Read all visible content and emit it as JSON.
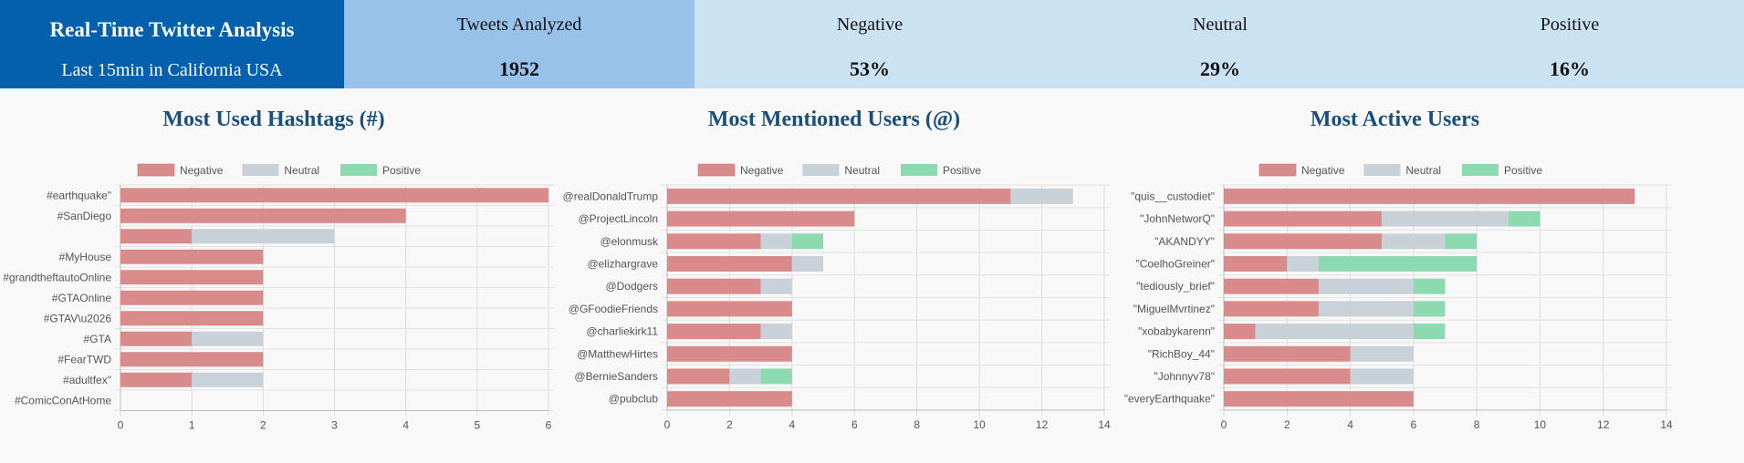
{
  "header": {
    "title": "Real-Time Twitter Analysis",
    "subtitle": "Last 15min in California USA",
    "stats": [
      {
        "label": "Tweets Analyzed",
        "value": "1952"
      },
      {
        "label": "Negative",
        "value": "53%"
      },
      {
        "label": "Neutral",
        "value": "29%"
      },
      {
        "label": "Positive",
        "value": "16%"
      }
    ]
  },
  "colors": {
    "negative": "#d98b8b",
    "neutral": "#c9d1d8",
    "positive": "#8dd9b0"
  },
  "chart_data": [
    {
      "type": "bar",
      "orientation": "horizontal",
      "stacked": true,
      "title": "Most Used Hashtags (#)",
      "categories": [
        "#earthquake\"",
        "#SanDiego",
        "",
        "#MyHouse",
        "#grandtheftautoOnline",
        "#GTAOnline",
        "#GTAV\\u2026",
        "#GTA",
        "#FearTWD",
        "#adultfex\"",
        "#ComicConAtHome"
      ],
      "series": [
        {
          "name": "Negative",
          "values": [
            6,
            4,
            1,
            2,
            2,
            2,
            2,
            1,
            2,
            1,
            0
          ]
        },
        {
          "name": "Neutral",
          "values": [
            0,
            0,
            2,
            0,
            0,
            0,
            0,
            1,
            0,
            1,
            0
          ]
        },
        {
          "name": "Positive",
          "values": [
            0,
            0,
            0,
            0,
            0,
            0,
            0,
            0,
            0,
            0,
            0
          ]
        }
      ],
      "xlim": [
        0,
        6
      ],
      "ticks": [
        0,
        1,
        2,
        3,
        4,
        5,
        6
      ],
      "legend": "top",
      "grid": true
    },
    {
      "type": "bar",
      "orientation": "horizontal",
      "stacked": true,
      "title": "Most Mentioned Users (@)",
      "categories": [
        "@realDonaldTrump",
        "@ProjectLincoln",
        "@elonmusk",
        "@elizhargrave",
        "@Dodgers",
        "@GFoodieFriends",
        "@charliekirk11",
        "@MatthewHirtes",
        "@BernieSanders",
        "@pubclub"
      ],
      "series": [
        {
          "name": "Negative",
          "values": [
            11,
            6,
            3,
            4,
            3,
            4,
            3,
            4,
            2,
            4
          ]
        },
        {
          "name": "Neutral",
          "values": [
            2,
            0,
            1,
            1,
            1,
            0,
            1,
            0,
            1,
            0
          ]
        },
        {
          "name": "Positive",
          "values": [
            0,
            0,
            1,
            0,
            0,
            0,
            0,
            0,
            1,
            0
          ]
        }
      ],
      "xlim": [
        0,
        14
      ],
      "ticks": [
        0,
        2,
        4,
        6,
        8,
        10,
        12,
        14
      ],
      "legend": "top",
      "grid": true
    },
    {
      "type": "bar",
      "orientation": "horizontal",
      "stacked": true,
      "title": "Most Active Users",
      "categories": [
        "\"quis__custodiet\"",
        "\"JohnNetworQ\"",
        "\"AKANDYY\"",
        "\"CoelhoGreiner\"",
        "\"tediously_brief\"",
        "\"MiguelMvrtinez\"",
        "\"xobabykarenn\"",
        "\"RichBoy_44\"",
        "\"Johnnyv78\"",
        "\"everyEarthquake\""
      ],
      "series": [
        {
          "name": "Negative",
          "values": [
            13,
            5,
            5,
            2,
            3,
            3,
            1,
            4,
            4,
            6
          ]
        },
        {
          "name": "Neutral",
          "values": [
            0,
            4,
            2,
            1,
            3,
            3,
            5,
            2,
            2,
            0
          ]
        },
        {
          "name": "Positive",
          "values": [
            0,
            1,
            1,
            5,
            1,
            1,
            1,
            0,
            0,
            0
          ]
        }
      ],
      "xlim": [
        0,
        14
      ],
      "ticks": [
        0,
        2,
        4,
        6,
        8,
        10,
        12,
        14
      ],
      "legend": "top",
      "grid": true
    }
  ]
}
